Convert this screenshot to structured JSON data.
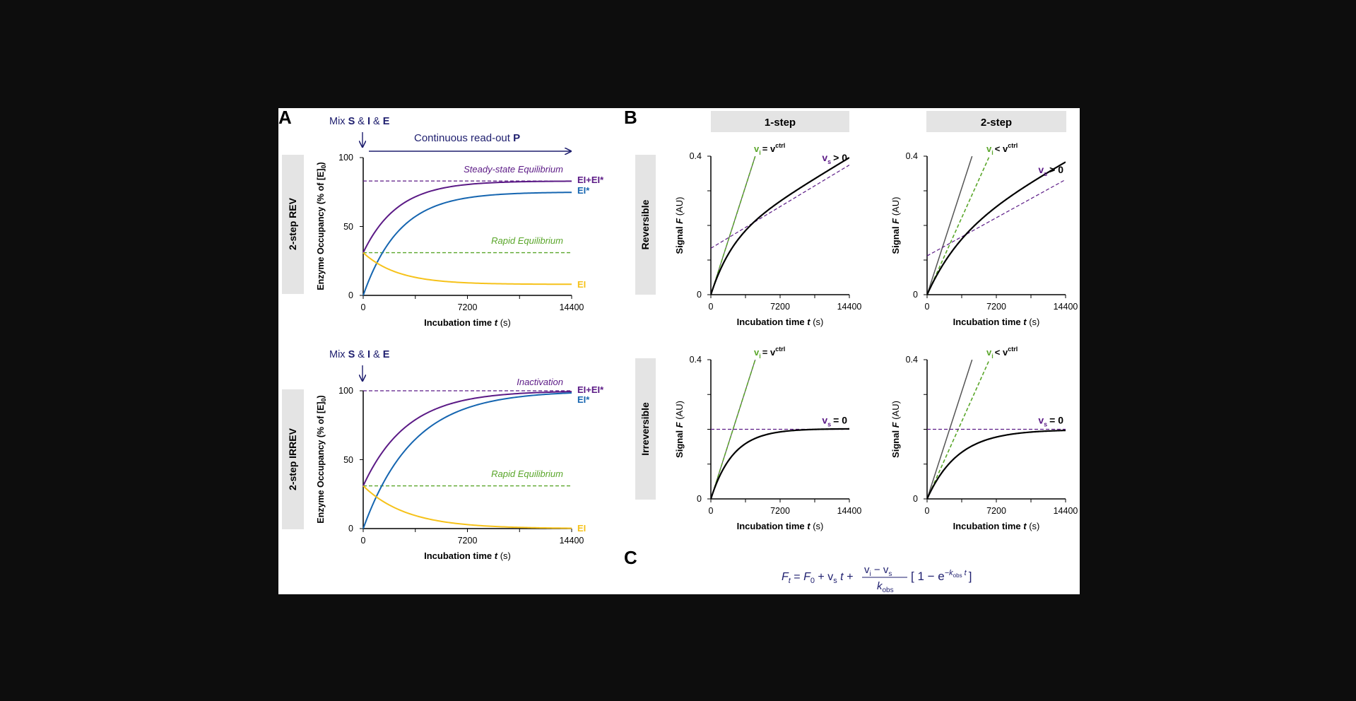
{
  "colors": {
    "background": "#0d0d0d",
    "figure": "#ffffff",
    "navy": "#1e1e6e",
    "purple": "#5b1a86",
    "blue": "#1565b0",
    "yellow": "#f6c21a",
    "green": "#5aa62a",
    "tab_gray": "#e4e4e4",
    "black": "#000000",
    "gray_line": "#555555"
  },
  "panelA": {
    "letter": "A",
    "mix_prefix": "Mix ",
    "mix_S": "S",
    "mix_amp1": " & ",
    "mix_I": "I",
    "mix_amp2": " & ",
    "mix_E": "E",
    "readout_prefix": "Continuous read-out ",
    "readout_P": "P",
    "rows": [
      {
        "label": "2-step REV",
        "top_annotation": "Steady-state Equilibrium",
        "mid_annotation": "Rapid Equilibrium",
        "end_labels": [
          "EI+EI*",
          "EI*",
          "EI"
        ]
      },
      {
        "label": "2-step IRREV",
        "top_annotation": "Inactivation",
        "mid_annotation": "Rapid Equilibrium",
        "end_labels": [
          "EI+EI*",
          "EI*",
          "EI"
        ]
      }
    ],
    "ylabel": "Enzyme Occupancy (% of [E]",
    "ylabel_sub": "0",
    "ylabel_close": ")",
    "xlabel_prefix": "Incubation time ",
    "xlabel_var": "t",
    "xlabel_suffix": " (s)",
    "xticks": [
      "0",
      "7200",
      "14400"
    ],
    "yticks": [
      "0",
      "50",
      "100"
    ]
  },
  "panelB": {
    "letter": "B",
    "columns": [
      "1-step",
      "2-step"
    ],
    "rows": [
      "Reversible",
      "Irreversible"
    ],
    "ylabel_prefix": "Signal ",
    "ylabel_var": "F",
    "ylabel_suffix": " (AU)",
    "xlabel_prefix": "Incubation time ",
    "xlabel_var": "t",
    "xlabel_suffix": " (s)",
    "xticks": [
      "0",
      "7200",
      "14400"
    ],
    "yticks": [
      "0",
      "0.4"
    ],
    "vi_equal": "= v",
    "vi_less": "< v",
    "ctrl_sup": "ctrl",
    "vi_base": "v",
    "vi_sub": "i",
    "vs_base": "v",
    "vs_sub": "s",
    "vs_pos": "> 0",
    "vs_zero": "= 0"
  },
  "panelC": {
    "letter": "C",
    "Ft": "F",
    "t_sub": "t",
    "eq1": " = ",
    "F0": "F",
    "zero_sub": "0",
    "plus1": " + v",
    "s_sub": "s",
    "t1": " t + ",
    "num": "v",
    "num_i": "i",
    "num_minus": " − v",
    "num_s": "s",
    "den": "k",
    "den_sub": "obs",
    "bracket": "[ 1 − e",
    "exp": "−k",
    "exp_sub": "obs",
    "exp_t": " t",
    "bracket_close": "]"
  },
  "chart_data": [
    {
      "type": "line",
      "panel": "A-top",
      "xlabel": "Incubation time t (s)",
      "ylabel": "Enzyme Occupancy (% of [E]0)",
      "xlim": [
        0,
        14400
      ],
      "ylim": [
        0,
        100
      ],
      "xticks": [
        0,
        7200,
        14400
      ],
      "yticks": [
        0,
        50,
        100
      ],
      "series": [
        {
          "name": "EI+EI*",
          "color": "#5b1a86",
          "model": "exp",
          "y0": 31,
          "yinf": 83,
          "k": 0.00042
        },
        {
          "name": "EI*",
          "color": "#1565b0",
          "model": "exp",
          "y0": 0,
          "yinf": 75,
          "k": 0.0004
        },
        {
          "name": "EI",
          "color": "#f6c21a",
          "model": "exp",
          "y0": 31,
          "yinf": 8,
          "k": 0.00042
        }
      ],
      "hlines": [
        {
          "y": 83,
          "color": "#5b1a86",
          "label": "Steady-state Equilibrium"
        },
        {
          "y": 31,
          "color": "#5aa62a",
          "label": "Rapid Equilibrium"
        }
      ]
    },
    {
      "type": "line",
      "panel": "A-bottom",
      "xlabel": "Incubation time t (s)",
      "ylabel": "Enzyme Occupancy (% of [E]0)",
      "xlim": [
        0,
        14400
      ],
      "ylim": [
        0,
        100
      ],
      "xticks": [
        0,
        7200,
        14400
      ],
      "yticks": [
        0,
        50,
        100
      ],
      "series": [
        {
          "name": "EI+EI*",
          "color": "#5b1a86",
          "model": "exp",
          "y0": 31,
          "yinf": 100,
          "k": 0.00033
        },
        {
          "name": "EI*",
          "color": "#1565b0",
          "model": "exp",
          "y0": 0,
          "yinf": 100,
          "k": 0.00029
        },
        {
          "name": "EI",
          "color": "#f6c21a",
          "model": "exp",
          "y0": 31,
          "yinf": 0,
          "k": 0.00033
        }
      ],
      "hlines": [
        {
          "y": 100,
          "color": "#5b1a86",
          "label": "Inactivation"
        },
        {
          "y": 31,
          "color": "#5aa62a",
          "label": "Rapid Equilibrium"
        }
      ]
    },
    {
      "type": "line",
      "panel": "B-reversible-1step",
      "xlabel": "Incubation time t (s)",
      "ylabel": "Signal F (AU)",
      "xlim": [
        0,
        14400
      ],
      "ylim": [
        0,
        0.4
      ],
      "xticks": [
        0,
        7200,
        14400
      ],
      "yticks": [
        0,
        0.4
      ],
      "vi": 8.67e-05,
      "vs": 1.67e-05,
      "kobs": 0.00045,
      "F0": 0,
      "vi_line_color": "#5aa62a",
      "ctrl_line": false,
      "vs_line": {
        "intercept": 0.134,
        "slope": 1.67e-05,
        "color": "#5b1a86"
      },
      "annotations": [
        "vi = vctrl",
        "vs > 0"
      ]
    },
    {
      "type": "line",
      "panel": "B-reversible-2step",
      "xlabel": "Incubation time t (s)",
      "ylabel": "Signal F (AU)",
      "xlim": [
        0,
        14400
      ],
      "ylim": [
        0,
        0.4
      ],
      "xticks": [
        0,
        7200,
        14400
      ],
      "yticks": [
        0,
        0.4
      ],
      "vi": 6.17e-05,
      "vs": 1.53e-05,
      "kobs": 0.00028,
      "F0": 0,
      "vi_line_color": "#5aa62a",
      "ctrl_line": true,
      "ctrl_slope": 8.55e-05,
      "vs_line": {
        "intercept": 0.112,
        "slope": 1.53e-05,
        "color": "#5b1a86"
      },
      "annotations": [
        "vi < vctrl",
        "vs > 0"
      ]
    },
    {
      "type": "line",
      "panel": "B-irreversible-1step",
      "xlabel": "Incubation time t (s)",
      "ylabel": "Signal F (AU)",
      "xlim": [
        0,
        14400
      ],
      "ylim": [
        0,
        0.4
      ],
      "xticks": [
        0,
        7200,
        14400
      ],
      "yticks": [
        0,
        0.4
      ],
      "vi": 8.67e-05,
      "vs": 0,
      "kobs": 0.00043,
      "F0": 0,
      "vi_line_color": "#5aa62a",
      "ctrl_line": false,
      "vs_line": {
        "intercept": 0.2,
        "slope": 0,
        "color": "#5b1a86"
      },
      "annotations": [
        "vi = vctrl",
        "vs = 0"
      ]
    },
    {
      "type": "line",
      "panel": "B-irreversible-2step",
      "xlabel": "Incubation time t (s)",
      "ylabel": "Signal F (AU)",
      "xlim": [
        0,
        14400
      ],
      "ylim": [
        0,
        0.4
      ],
      "xticks": [
        0,
        7200,
        14400
      ],
      "yticks": [
        0,
        0.4
      ],
      "vi": 6.17e-05,
      "vs": 0,
      "kobs": 0.00031,
      "F0": 0,
      "vi_line_color": "#5aa62a",
      "ctrl_line": true,
      "ctrl_slope": 8.55e-05,
      "vs_line": {
        "intercept": 0.2,
        "slope": 0,
        "color": "#5b1a86"
      },
      "annotations": [
        "vi < vctrl",
        "vs = 0"
      ]
    }
  ]
}
